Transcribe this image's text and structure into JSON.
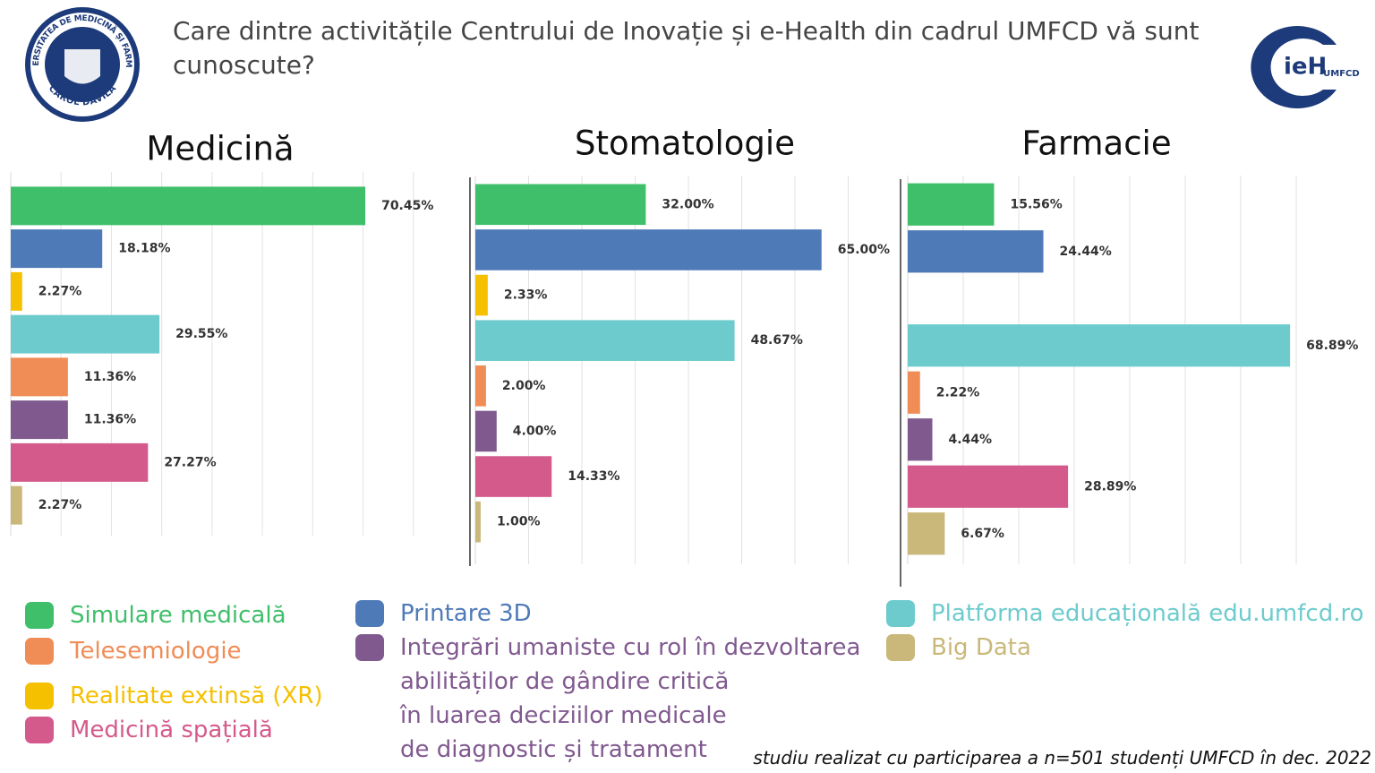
{
  "header": {
    "title": "Care dintre activitățile Centrului de Inovație și e-Health din cadrul UMFCD vă sunt cunoscute?",
    "logo_left_top": "UNIVERSITATEA DE MEDICINĂ ȘI FARMACIE",
    "logo_left_bottom": "CAROL DAVILA",
    "logo_right": "ieH",
    "logo_right_sub": "-UMFCD"
  },
  "chart_data": {
    "type": "bar",
    "orientation": "horizontal",
    "grid": true,
    "categories": [
      "Simulare medicală",
      "Printare 3D",
      "Realitate extinsă (XR)",
      "Platforma educațională edu.umfcd.ro",
      "Telesemiologie",
      "Integrări umaniste cu rol în dezvoltarea\nabilităților de gândire critică\nîn luarea deciziilor medicale\nde diagnostic și tratament",
      "Medicină spațială",
      "Big Data"
    ],
    "colors": [
      "#3fbf6a",
      "#4f7ab8",
      "#f5c000",
      "#6dcbce",
      "#f08c55",
      "#80598f",
      "#d45a8b",
      "#c9b87a"
    ],
    "series": [
      {
        "name": "Medicină",
        "values": [
          70.45,
          18.18,
          2.27,
          29.55,
          11.36,
          11.36,
          27.27,
          2.27
        ],
        "value_labels": [
          "70.45%",
          "18.18%",
          "2.27%",
          "29.55%",
          "11.36%",
          "11.36%",
          "27.27%",
          "2.27%"
        ],
        "xlim": [
          0,
          90
        ],
        "xticks": [
          10,
          20,
          30,
          40,
          50,
          60,
          70,
          80
        ]
      },
      {
        "name": "Stomatologie",
        "values": [
          32.0,
          65.0,
          2.33,
          48.67,
          2.0,
          4.0,
          14.33,
          1.0
        ],
        "value_labels": [
          "32.00%",
          "65.00%",
          "2.33%",
          "48.67%",
          "2.00%",
          "4.00%",
          "14.33%",
          "1.00%"
        ],
        "xlim": [
          0,
          80
        ],
        "xticks": [
          10,
          20,
          30,
          40,
          50,
          60,
          70
        ]
      },
      {
        "name": "Farmacie",
        "values": [
          15.56,
          24.44,
          null,
          68.89,
          2.22,
          4.44,
          28.89,
          6.67
        ],
        "value_labels": [
          "15.56%",
          "24.44%",
          null,
          "68.89%",
          "2.22%",
          "4.44%",
          "28.89%",
          "6.67%"
        ],
        "xlim": [
          0,
          80
        ],
        "xticks": [
          10,
          20,
          30,
          40,
          50,
          60,
          70
        ]
      }
    ]
  },
  "footnote": "studiu realizat cu participarea a n=501 studenți UMFCD în dec. 2022"
}
